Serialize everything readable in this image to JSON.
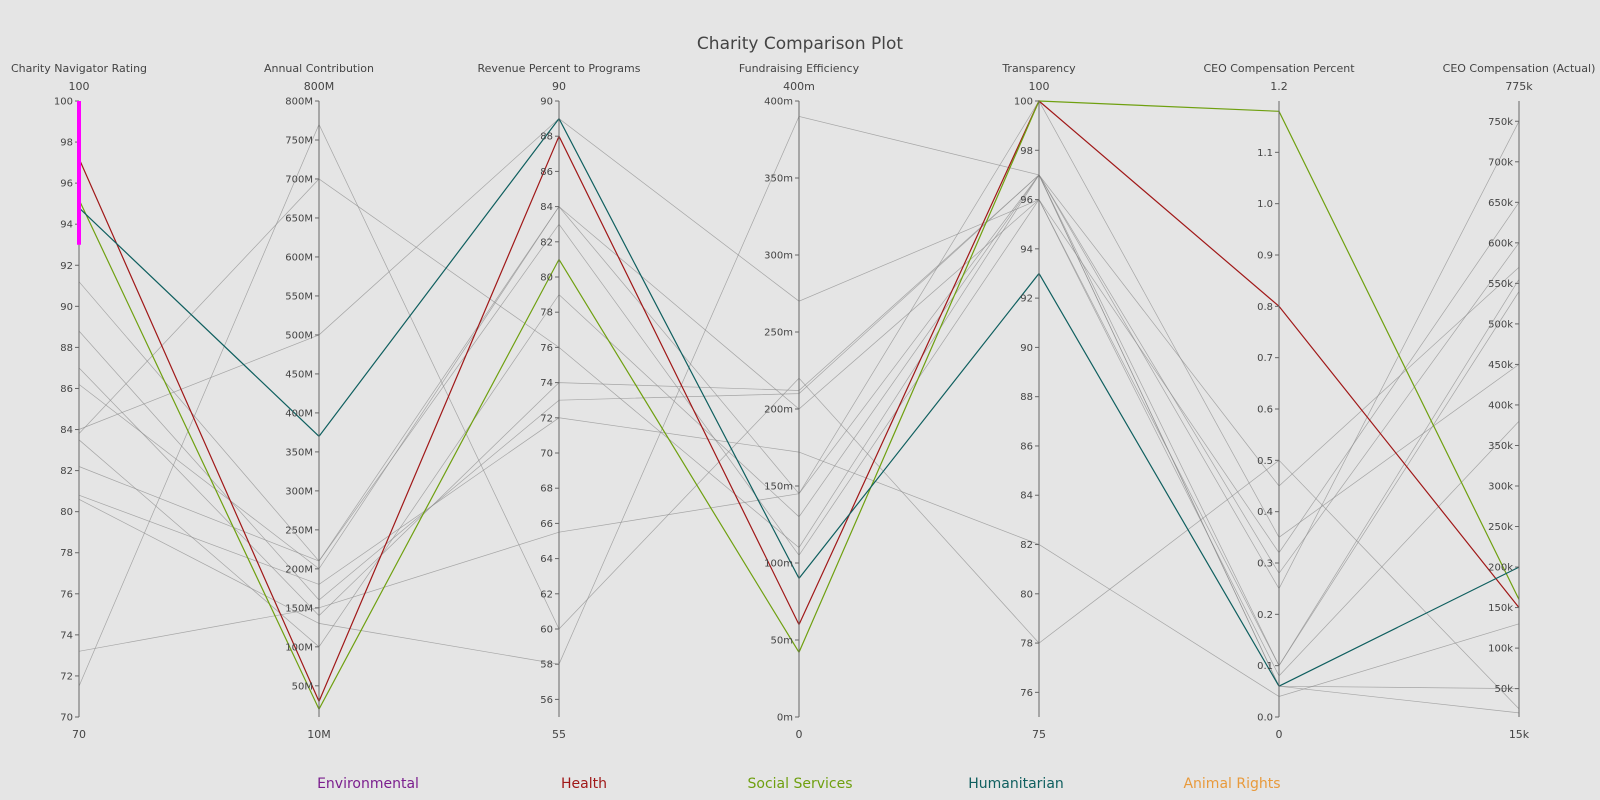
{
  "chart_data": {
    "type": "parallel-coordinates",
    "title": "Charity Comparison Plot",
    "axes": [
      {
        "label": "Charity Navigator Rating",
        "min": 70,
        "max": 100,
        "min_label": "70",
        "max_label": "100",
        "ticks": [
          {
            "v": 70,
            "t": "70"
          },
          {
            "v": 72,
            "t": "72"
          },
          {
            "v": 74,
            "t": "74"
          },
          {
            "v": 76,
            "t": "76"
          },
          {
            "v": 78,
            "t": "78"
          },
          {
            "v": 80,
            "t": "80"
          },
          {
            "v": 82,
            "t": "82"
          },
          {
            "v": 84,
            "t": "84"
          },
          {
            "v": 86,
            "t": "86"
          },
          {
            "v": 88,
            "t": "88"
          },
          {
            "v": 90,
            "t": "90"
          },
          {
            "v": 92,
            "t": "92"
          },
          {
            "v": 94,
            "t": "94"
          },
          {
            "v": 96,
            "t": "96"
          },
          {
            "v": 98,
            "t": "98"
          },
          {
            "v": 100,
            "t": "100"
          }
        ],
        "constraint": [
          93,
          100
        ],
        "constraint_color": "#ff00ff"
      },
      {
        "label": "Annual Contribution",
        "min": 10,
        "max": 800,
        "min_label": "10M",
        "max_label": "800M",
        "ticks": [
          {
            "v": 50,
            "t": "50M"
          },
          {
            "v": 100,
            "t": "100M"
          },
          {
            "v": 150,
            "t": "150M"
          },
          {
            "v": 200,
            "t": "200M"
          },
          {
            "v": 250,
            "t": "250M"
          },
          {
            "v": 300,
            "t": "300M"
          },
          {
            "v": 350,
            "t": "350M"
          },
          {
            "v": 400,
            "t": "400M"
          },
          {
            "v": 450,
            "t": "450M"
          },
          {
            "v": 500,
            "t": "500M"
          },
          {
            "v": 550,
            "t": "550M"
          },
          {
            "v": 600,
            "t": "600M"
          },
          {
            "v": 650,
            "t": "650M"
          },
          {
            "v": 700,
            "t": "700M"
          },
          {
            "v": 750,
            "t": "750M"
          },
          {
            "v": 800,
            "t": "800M"
          }
        ]
      },
      {
        "label": "Revenue Percent to Programs",
        "min": 55,
        "max": 90,
        "min_label": "55",
        "max_label": "90",
        "ticks": [
          {
            "v": 56,
            "t": "56"
          },
          {
            "v": 58,
            "t": "58"
          },
          {
            "v": 60,
            "t": "60"
          },
          {
            "v": 62,
            "t": "62"
          },
          {
            "v": 64,
            "t": "64"
          },
          {
            "v": 66,
            "t": "66"
          },
          {
            "v": 68,
            "t": "68"
          },
          {
            "v": 70,
            "t": "70"
          },
          {
            "v": 72,
            "t": "72"
          },
          {
            "v": 74,
            "t": "74"
          },
          {
            "v": 76,
            "t": "76"
          },
          {
            "v": 78,
            "t": "78"
          },
          {
            "v": 80,
            "t": "80"
          },
          {
            "v": 82,
            "t": "82"
          },
          {
            "v": 84,
            "t": "84"
          },
          {
            "v": 86,
            "t": "86"
          },
          {
            "v": 88,
            "t": "88"
          },
          {
            "v": 90,
            "t": "90"
          }
        ]
      },
      {
        "label": "Fundraising Efficiency",
        "min": 0,
        "max": 400,
        "min_label": "0",
        "max_label": "400m",
        "ticks": [
          {
            "v": 0,
            "t": "0m"
          },
          {
            "v": 50,
            "t": "50m"
          },
          {
            "v": 100,
            "t": "100m"
          },
          {
            "v": 150,
            "t": "150m"
          },
          {
            "v": 200,
            "t": "200m"
          },
          {
            "v": 250,
            "t": "250m"
          },
          {
            "v": 300,
            "t": "300m"
          },
          {
            "v": 350,
            "t": "350m"
          },
          {
            "v": 400,
            "t": "400m"
          }
        ]
      },
      {
        "label": "Transparency",
        "min": 75,
        "max": 100,
        "min_label": "75",
        "max_label": "100",
        "ticks": [
          {
            "v": 76,
            "t": "76"
          },
          {
            "v": 78,
            "t": "78"
          },
          {
            "v": 80,
            "t": "80"
          },
          {
            "v": 82,
            "t": "82"
          },
          {
            "v": 84,
            "t": "84"
          },
          {
            "v": 86,
            "t": "86"
          },
          {
            "v": 88,
            "t": "88"
          },
          {
            "v": 90,
            "t": "90"
          },
          {
            "v": 92,
            "t": "92"
          },
          {
            "v": 94,
            "t": "94"
          },
          {
            "v": 96,
            "t": "96"
          },
          {
            "v": 98,
            "t": "98"
          },
          {
            "v": 100,
            "t": "100"
          }
        ]
      },
      {
        "label": "CEO Compensation Percent",
        "min": 0,
        "max": 1.2,
        "min_label": "0",
        "max_label": "1.2",
        "ticks": [
          {
            "v": 0,
            "t": "0.0"
          },
          {
            "v": 0.1,
            "t": "0.1"
          },
          {
            "v": 0.2,
            "t": "0.2"
          },
          {
            "v": 0.3,
            "t": "0.3"
          },
          {
            "v": 0.4,
            "t": "0.4"
          },
          {
            "v": 0.5,
            "t": "0.5"
          },
          {
            "v": 0.6,
            "t": "0.6"
          },
          {
            "v": 0.7,
            "t": "0.7"
          },
          {
            "v": 0.8,
            "t": "0.8"
          },
          {
            "v": 0.9,
            "t": "0.9"
          },
          {
            "v": 1.0,
            "t": "1.0"
          },
          {
            "v": 1.1,
            "t": "1.1"
          }
        ]
      },
      {
        "label": "CEO Compensation (Actual)",
        "min": 15,
        "max": 775,
        "min_label": "15k",
        "max_label": "775k",
        "ticks": [
          {
            "v": 50,
            "t": "50k"
          },
          {
            "v": 100,
            "t": "100k"
          },
          {
            "v": 150,
            "t": "150k"
          },
          {
            "v": 200,
            "t": "200k"
          },
          {
            "v": 250,
            "t": "250k"
          },
          {
            "v": 300,
            "t": "300k"
          },
          {
            "v": 350,
            "t": "350k"
          },
          {
            "v": 400,
            "t": "400k"
          },
          {
            "v": 450,
            "t": "450k"
          },
          {
            "v": 500,
            "t": "500k"
          },
          {
            "v": 550,
            "t": "550k"
          },
          {
            "v": 600,
            "t": "600k"
          },
          {
            "v": 650,
            "t": "650k"
          },
          {
            "v": 700,
            "t": "700k"
          },
          {
            "v": 750,
            "t": "750k"
          }
        ]
      }
    ],
    "legend": [
      {
        "name": "Environmental",
        "color": "#7b1f8e"
      },
      {
        "name": "Health",
        "color": "#a01818"
      },
      {
        "name": "Social Services",
        "color": "#6fa010"
      },
      {
        "name": "Humanitarian",
        "color": "#0f5f5f"
      },
      {
        "name": "Animal Rights",
        "color": "#e89a3c"
      }
    ],
    "rows": [
      {
        "category": "Health",
        "highlighted": true,
        "values": [
          97.2,
          30,
          88,
          60,
          100,
          0.8,
          150
        ]
      },
      {
        "category": "Social Services",
        "highlighted": true,
        "values": [
          95.2,
          20,
          81,
          42,
          100,
          1.18,
          160
        ]
      },
      {
        "category": "Humanitarian",
        "highlighted": true,
        "values": [
          94.8,
          370,
          89,
          90,
          93,
          0.06,
          200
        ]
      },
      {
        "category": "",
        "highlighted": false,
        "values": [
          91.2,
          210,
          84,
          200,
          96,
          0.32,
          650
        ]
      },
      {
        "category": "",
        "highlighted": false,
        "values": [
          88.8,
          160,
          73,
          210,
          97,
          0.28,
          600
        ]
      },
      {
        "category": "",
        "highlighted": false,
        "values": [
          87,
          140,
          74,
          212,
          97,
          0.45,
          570
        ]
      },
      {
        "category": "",
        "highlighted": false,
        "values": [
          86.2,
          200,
          84,
          145,
          100,
          0.35,
          450
        ]
      },
      {
        "category": "",
        "highlighted": false,
        "values": [
          84,
          500,
          89,
          270,
          96,
          0.1,
          555
        ]
      },
      {
        "category": "",
        "highlighted": false,
        "values": [
          83.8,
          700,
          76,
          110,
          97,
          0.1,
          540
        ]
      },
      {
        "category": "",
        "highlighted": false,
        "values": [
          83.5,
          100,
          79,
          130,
          97,
          0.25,
          750
        ]
      },
      {
        "category": "",
        "highlighted": false,
        "values": [
          82.2,
          210,
          83,
          105,
          96,
          0.08,
          380
        ]
      },
      {
        "category": "",
        "highlighted": false,
        "values": [
          80.8,
          180,
          72,
          172,
          82,
          0.04,
          130
        ]
      },
      {
        "category": "",
        "highlighted": false,
        "values": [
          80.6,
          130,
          58,
          390,
          97,
          0.06,
          20
        ]
      },
      {
        "category": "",
        "highlighted": false,
        "values": [
          73.2,
          150,
          65.5,
          145,
          97,
          0.06,
          50
        ]
      },
      {
        "category": "",
        "highlighted": false,
        "values": [
          71.5,
          770,
          60,
          220,
          78,
          0.5,
          25
        ]
      }
    ]
  }
}
